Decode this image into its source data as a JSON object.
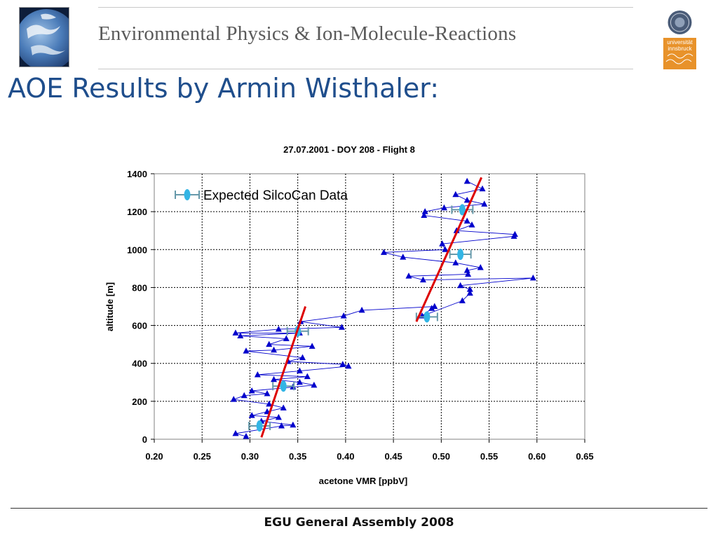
{
  "header": {
    "title": "Environmental Physics & Ion-Molecule-Reactions",
    "logo_left": "earth-globe-logo",
    "logo_right": {
      "icon": "university-seal-logo",
      "text_line1": "universität",
      "text_line2": "innsbruck"
    }
  },
  "slide": {
    "title": "AOE Results by Armin Wisthaler:"
  },
  "footer": {
    "text": "EGU General Assembly 2008"
  },
  "chart_data": {
    "type": "scatter",
    "title_plain": "27.07.2001 - DOY 208 - ",
    "title_bold": "Flight 8",
    "xlabel": "acetone VMR [ppbV]",
    "ylabel": "altitude [m]",
    "xlim": [
      0.2,
      0.65
    ],
    "ylim": [
      0,
      1400
    ],
    "x_ticks": [
      "0.20",
      "0.25",
      "0.30",
      "0.35",
      "0.40",
      "0.45",
      "0.50",
      "0.55",
      "0.60",
      "0.65"
    ],
    "y_ticks": [
      "0",
      "200",
      "400",
      "600",
      "800",
      "1000",
      "1200",
      "1400"
    ],
    "grid": true,
    "legend_position": "top-left",
    "colors": {
      "measured": "#0000cc",
      "silcocan": "#33b5e5",
      "fit": "#dd0000",
      "errorbar": "#6699aa"
    },
    "series": [
      {
        "kind": "measured",
        "points": [
          [
            0.296,
            15
          ],
          [
            0.285,
            30
          ],
          [
            0.333,
            70
          ],
          [
            0.345,
            75
          ],
          [
            0.312,
            95
          ],
          [
            0.33,
            115
          ],
          [
            0.302,
            125
          ],
          [
            0.318,
            145
          ],
          [
            0.335,
            165
          ],
          [
            0.32,
            185
          ],
          [
            0.283,
            210
          ],
          [
            0.294,
            230
          ],
          [
            0.318,
            240
          ],
          [
            0.302,
            255
          ],
          [
            0.345,
            275
          ],
          [
            0.367,
            285
          ],
          [
            0.352,
            300
          ],
          [
            0.325,
            315
          ],
          [
            0.36,
            330
          ],
          [
            0.308,
            340
          ],
          [
            0.352,
            360
          ],
          [
            0.403,
            385
          ],
          [
            0.397,
            395
          ],
          [
            0.34,
            410
          ],
          [
            0.355,
            430
          ],
          [
            0.296,
            465
          ],
          [
            0.325,
            470
          ],
          [
            0.365,
            490
          ],
          [
            0.32,
            500
          ],
          [
            0.338,
            530
          ],
          [
            0.29,
            545
          ],
          [
            0.352,
            560
          ],
          [
            0.285,
            560
          ],
          [
            0.33,
            580
          ],
          [
            0.396,
            590
          ],
          [
            0.353,
            620
          ],
          [
            0.398,
            650
          ],
          [
            0.417,
            680
          ],
          [
            0.493,
            700
          ],
          [
            0.49,
            690
          ],
          [
            0.48,
            650
          ],
          [
            0.522,
            730
          ],
          [
            0.53,
            770
          ],
          [
            0.53,
            790
          ],
          [
            0.52,
            810
          ],
          [
            0.596,
            850
          ],
          [
            0.481,
            840
          ],
          [
            0.466,
            860
          ],
          [
            0.528,
            870
          ],
          [
            0.527,
            890
          ],
          [
            0.541,
            905
          ],
          [
            0.515,
            930
          ],
          [
            0.46,
            960
          ],
          [
            0.44,
            985
          ],
          [
            0.504,
            1000
          ],
          [
            0.501,
            1030
          ],
          [
            0.576,
            1070
          ],
          [
            0.577,
            1080
          ],
          [
            0.516,
            1100
          ],
          [
            0.532,
            1130
          ],
          [
            0.527,
            1150
          ],
          [
            0.482,
            1180
          ],
          [
            0.483,
            1200
          ],
          [
            0.503,
            1220
          ],
          [
            0.545,
            1240
          ],
          [
            0.527,
            1260
          ],
          [
            0.515,
            1290
          ],
          [
            0.543,
            1320
          ],
          [
            0.527,
            1360
          ]
        ]
      },
      {
        "kind": "silcocan",
        "name": "Expected SilcoCan Data",
        "points": [
          {
            "x": 0.31,
            "y": 70,
            "err": 0.011
          },
          {
            "x": 0.335,
            "y": 280,
            "err": 0.011
          },
          {
            "x": 0.35,
            "y": 570,
            "err": 0.011
          },
          {
            "x": 0.485,
            "y": 645,
            "err": 0.011
          },
          {
            "x": 0.52,
            "y": 975,
            "err": 0.011
          },
          {
            "x": 0.522,
            "y": 1210,
            "err": 0.011
          }
        ]
      },
      {
        "kind": "fit",
        "lines": [
          [
            [
              0.312,
              10
            ],
            [
              0.358,
              700
            ]
          ],
          [
            [
              0.474,
              620
            ],
            [
              0.542,
              1380
            ]
          ]
        ]
      }
    ]
  }
}
